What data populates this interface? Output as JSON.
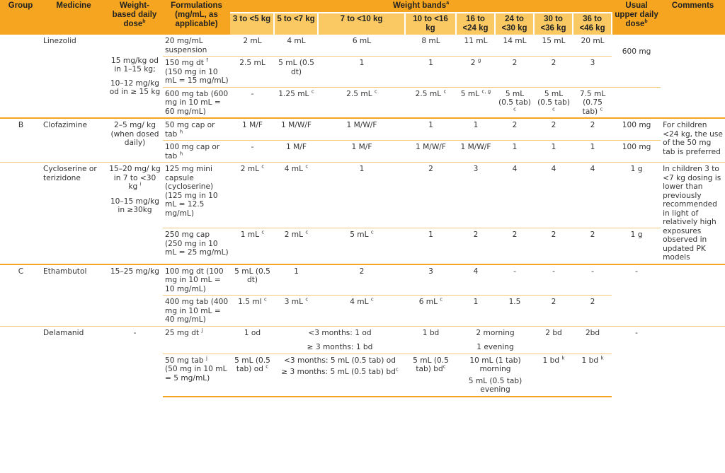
{
  "headers": {
    "group": "Group",
    "medicine": "Medicine",
    "weight_dose": "Weight-based daily dose",
    "weight_dose_sup": "b",
    "formulations": "Formulations (mg/mL, as applicable)",
    "weight_bands": "Weight bands",
    "weight_bands_sup": "a",
    "upper_dose": "Usual upper daily dose",
    "upper_dose_sup": "b",
    "comments": "Comments",
    "bands": [
      "3 to <5 kg",
      "5 to <7 kg",
      "7 to <10 kg",
      "10 to <16 kg",
      "16 to <24 kg",
      "24 to <30 kg",
      "30 to <36 kg",
      "36 to <46 kg"
    ]
  },
  "linezolid": {
    "name": "Linezolid",
    "dose_1": "15 mg/kg od in 1–15 kg;",
    "dose_2": "10–12 mg/kg od in ≥ 15 kg",
    "upper": "600 mg",
    "r1": {
      "form": "20 mg/mL suspension",
      "v": [
        "2 mL",
        "4 mL",
        "6 mL",
        "8 mL",
        "11 mL",
        "14 mL",
        "15 mL",
        "20 mL"
      ]
    },
    "r2": {
      "form": "150 mg dt",
      "form_sup": "f",
      "form2": "(150 mg in 10 mL = 15 mg/mL)",
      "v": [
        "2.5 mL",
        "5 mL (0.5 dt)",
        "1",
        "1",
        "2",
        "2",
        "2",
        "3"
      ],
      "v5_sup": "g"
    },
    "r3": {
      "form": "600 mg tab (600 mg in 10 mL = 60 mg/mL)",
      "v": [
        "-",
        "1.25 mL",
        "2.5 mL",
        "2.5 mL",
        "5 mL",
        "5 mL (0.5 tab)",
        "5 mL (0.5 tab)",
        "7.5 mL (0.75 tab)"
      ],
      "sup_c": "c",
      "sup_cg": "c, g"
    }
  },
  "clofazimine": {
    "group": "B",
    "name": "Clofazimine",
    "dose": "2–5 mg/ kg (when dosed daily)",
    "comment": "For children <24 kg, the use of the 50 mg tab is preferred",
    "r1": {
      "form": "50 mg cap or tab",
      "form_sup": "h",
      "v": [
        "1 M/F",
        "1 M/W/F",
        "1 M/W/F",
        "1",
        "1",
        "2",
        "2",
        "2"
      ],
      "upper": "100 mg"
    },
    "r2": {
      "form": "100 mg cap or tab",
      "form_sup": "h",
      "v": [
        "-",
        "1 M/F",
        "1 M/F",
        "1 M/W/F",
        "1 M/W/F",
        "1",
        "1",
        "1"
      ],
      "upper": "100 mg"
    }
  },
  "cycloserine": {
    "name": "Cycloserine or terizidone",
    "dose_1": "15–20 mg/ kg in 7 to <30 kg",
    "dose_1_sup": "i",
    "dose_2": "10–15 mg/kg in ≥30kg",
    "comment": "In children 3 to <7 kg dosing is lower than previously recommended in light of relatively high exposures observed in updated PK models",
    "r1": {
      "form": "125 mg mini capsule (cycloserine) (125 mg in 10 mL = 12.5 mg/mL)",
      "v": [
        "2 mL",
        "4 mL",
        "1",
        "2",
        "3",
        "4",
        "4",
        "4"
      ],
      "upper": "1 g"
    },
    "r2": {
      "form": "250 mg cap (250 mg in 10 mL = 25 mg/mL)",
      "v": [
        "1 mL",
        "2 mL",
        "5 mL",
        "1",
        "2",
        "2",
        "2",
        "2"
      ],
      "upper": "1 g"
    }
  },
  "ethambutol": {
    "group": "C",
    "name": "Ethambutol",
    "dose": "15–25 mg/kg",
    "upper": "-",
    "r1": {
      "form": "100 mg dt (100 mg in 10 mL = 10 mg/mL)",
      "v": [
        "5 mL (0.5 dt)",
        "1",
        "2",
        "3",
        "4",
        "-",
        "-",
        "-"
      ]
    },
    "r2": {
      "form": "400 mg tab (400 mg in 10 mL = 40 mg/mL)",
      "v": [
        "1.5 ml",
        "3 mL",
        "4 mL",
        "6 mL",
        "1",
        "1.5",
        "2",
        "2"
      ]
    }
  },
  "delamanid": {
    "name": "Delamanid",
    "dose": "-",
    "upper": "-",
    "r1": {
      "form": "25 mg dt",
      "form_sup": "j",
      "v1": "1 od",
      "v23a": "<3 months: 1 od",
      "v23b": "≥ 3 months: 1 bd",
      "v4": "1 bd",
      "v56a": "2 morning",
      "v56b": "1 evening",
      "v7": "2 bd",
      "v8": "2bd"
    },
    "r2": {
      "form": "50 mg tab",
      "form_sup": "j",
      "form2": "(50 mg in 10 mL = 5 mg/mL)",
      "v1": "5 mL (0.5 tab) od",
      "v23a": "<3 months: 5 mL (0.5 tab) od",
      "v23b": "≥ 3 months: 5 mL (0.5 tab) bd",
      "v4": "5 mL (0.5 tab) bd",
      "v56a": "10 mL (1 tab) morning",
      "v56b": "5 mL (0.5 tab) evening",
      "v7": "1 bd",
      "v8": "1 bd",
      "sup_k": "k"
    }
  },
  "sup_c": "c",
  "colors": {
    "header": "#f5a51f",
    "subheader": "#fbc963",
    "rule": "#f5a51f"
  }
}
